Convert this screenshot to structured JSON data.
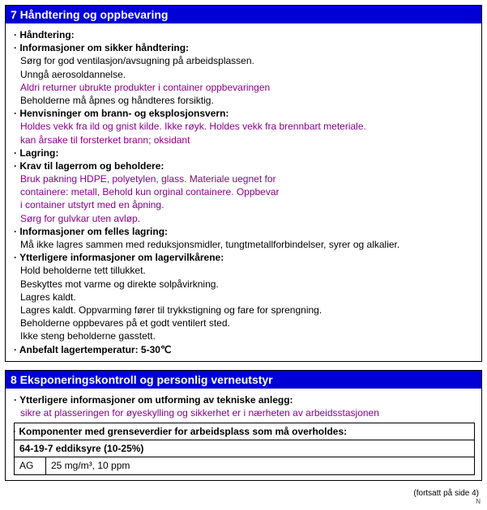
{
  "colors": {
    "header_bg": "#0000d6",
    "header_text": "#ffffff",
    "body_text": "#000000",
    "alt_text": "#8b008b",
    "border": "#000000",
    "background": "#ffffff"
  },
  "typography": {
    "font_family": "Arial, sans-serif",
    "body_fontsize_pt": 9,
    "header_fontsize_pt": 11
  },
  "section7": {
    "title": "7 Håndtering og oppbevaring",
    "lines": [
      {
        "text": "Håndtering:",
        "bold": true,
        "bullet": true
      },
      {
        "text": "Informasjoner om sikker håndtering:",
        "bold": true,
        "bullet": true
      },
      {
        "text": "Sørg for god ventilasjon/avsugning på arbeidsplassen."
      },
      {
        "text": "Unngå aerosoldannelse."
      },
      {
        "text": "Aldri returner ubrukte produkter i container oppbevaringen",
        "purple": true
      },
      {
        "text": "Beholderne må åpnes og håndteres forsiktig."
      },
      {
        "text": "Henvisninger om brann- og eksplosjonsvern:",
        "bold": true,
        "bullet": true
      },
      {
        "text": "Holdes vekk fra ild og gnist kilde. Ikke røyk. Holdes vekk fra brennbart meteriale.",
        "purple": true
      },
      {
        "text": "kan årsake til forsterket brann; oksidant",
        "purple": true
      },
      {
        "text": "Lagring:",
        "bold": true,
        "bullet": true
      },
      {
        "text": "Krav til lagerrom og beholdere:",
        "bold": true,
        "bullet": true
      },
      {
        "text": "Bruk pakning HDPE, polyetylen, glass. Materiale uegnet for",
        "purple": true
      },
      {
        "text": "containere: metall, Behold kun orginal containere. Oppbevar",
        "purple": true
      },
      {
        "text": "i container utstyrt med en åpning.",
        "purple": true
      },
      {
        "text": "Sørg for gulvkar uten avløp.",
        "purple": true
      },
      {
        "text": "Informasjoner om felles lagring:",
        "bold": true,
        "bullet": true
      },
      {
        "text": "Må ikke lagres sammen med reduksjonsmidler, tungtmetallforbindelser, syrer og alkalier."
      },
      {
        "text": "Ytterligere informasjoner om lagervilkårene:",
        "bold": true,
        "bullet": true
      },
      {
        "text": "Hold beholderne tett tillukket."
      },
      {
        "text": "Beskyttes mot varme og direkte solpåvirkning."
      },
      {
        "text": "Lagres kaldt."
      },
      {
        "text": "Lagres kaldt. Oppvarming fører til trykkstigning og fare for sprengning."
      },
      {
        "text": "Beholderne oppbevares på et godt ventilert sted."
      },
      {
        "text": "Ikke steng beholderne gasstett."
      },
      {
        "text": "Anbefalt lagertemperatur:  5-30℃",
        "bold": true,
        "bullet": true
      }
    ]
  },
  "section8": {
    "title": "8 Eksponeringskontroll og personlig verneutstyr",
    "lines": [
      {
        "text": "Ytterligere informasjoner om utforming av tekniske anlegg:",
        "bold": true,
        "bullet": true
      },
      {
        "text": "sikre at plasseringen for øyeskylling og sikkerhet er i nærheten av arbeidsstasjonen",
        "purple": true
      }
    ],
    "table": {
      "header": "Komponenter med grenseverdier for arbeidsplass som må overholdes:",
      "row1": "64-19-7 eddiksyre (10-25%)",
      "row2_left": "AG",
      "row2_right": "25 mg/m³, 10 ppm"
    }
  },
  "footnote": "(fortsatt på side 4)",
  "corner_mark": "N"
}
